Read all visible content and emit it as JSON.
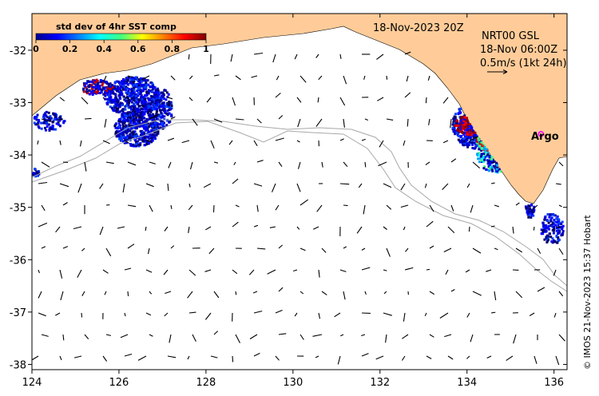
{
  "map": {
    "date_label": "18-Nov-2023 20Z",
    "current_product": "NRT00 GSL",
    "current_time": "18-Nov 06:00Z",
    "scale_label": "0.5m/s (1kt 24h)",
    "argo_label": "Argo",
    "credit": "© IMOS 21-Nov-2023 15:37 Hobart",
    "land_color": "#FFCC99",
    "sea_color": "#FFFFFF",
    "argo_color": "#FF00FF",
    "contour_color": "#A8A8A8"
  },
  "colorbar": {
    "title": "std dev of 4hr SST comp",
    "ticks": [
      "0",
      "0.2",
      "0.4",
      "0.6",
      "0.8",
      "1"
    ],
    "colormap": "jet"
  },
  "axes": {
    "x_ticks": [
      "124",
      "126",
      "128",
      "130",
      "132",
      "134",
      "136"
    ],
    "y_ticks": [
      "-32",
      "-33",
      "-34",
      "-35",
      "-36",
      "-37",
      "-38"
    ],
    "lon_range": [
      124,
      136.3
    ],
    "lat_range": [
      -38.1,
      -31.3
    ]
  },
  "argo_float": {
    "lon": 135.7,
    "lat": -33.6
  }
}
